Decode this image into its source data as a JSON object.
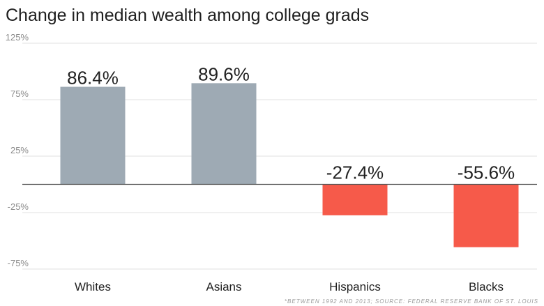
{
  "chart_data": {
    "type": "bar",
    "title": "Change in median wealth among college grads",
    "categories": [
      "Whites",
      "Asians",
      "Hispanics",
      "Blacks"
    ],
    "values": [
      86.4,
      89.6,
      -27.4,
      -55.6
    ],
    "data_labels": [
      "86.4%",
      "89.6%",
      "-27.4%",
      "-55.6%"
    ],
    "ylim": [
      -75,
      125
    ],
    "yticks": [
      125,
      75,
      25,
      -25,
      -75
    ],
    "ytick_labels": [
      "125%",
      "75%",
      "25%",
      "-25%",
      "-75%"
    ],
    "xlabel": "",
    "ylabel": "",
    "grid": true,
    "colors": {
      "positive": "#9eaab4",
      "negative": "#f65a4a"
    },
    "footnote": "*Between 1992 and 2013; Source: Federal Reserve Bank of St. Louis"
  }
}
